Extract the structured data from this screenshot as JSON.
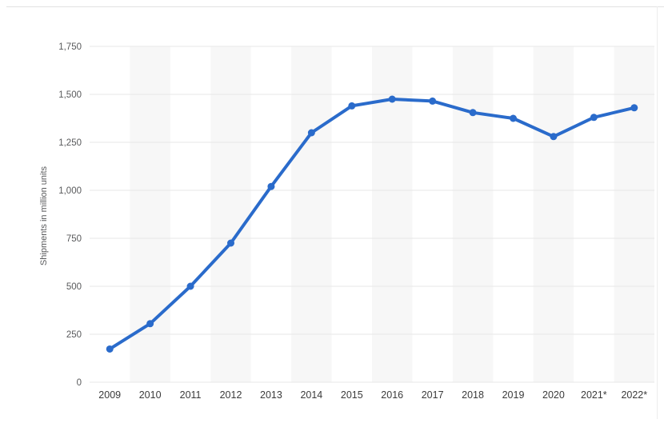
{
  "chart_data": {
    "type": "line",
    "title": "",
    "xlabel": "",
    "ylabel": "Shipments in million units",
    "categories": [
      "2009",
      "2010",
      "2011",
      "2012",
      "2013",
      "2014",
      "2015",
      "2016",
      "2017",
      "2018",
      "2019",
      "2020",
      "2021*",
      "2022*"
    ],
    "values": [
      173,
      305,
      500,
      725,
      1020,
      1300,
      1440,
      1475,
      1465,
      1405,
      1375,
      1280,
      1380,
      1430
    ],
    "y_ticks": [
      0,
      250,
      500,
      750,
      1000,
      1250,
      1500,
      1750
    ],
    "ylim": [
      0,
      1750
    ],
    "grid": "horizontal",
    "legend": "none",
    "line_color": "#2a6bcb",
    "point_color": "#2a6bcb",
    "grid_color": "#e7e7e7",
    "band_color": "#f7f7f7",
    "y_tick_color": "#58595b",
    "x_tick_color": "#3a3a3a"
  }
}
